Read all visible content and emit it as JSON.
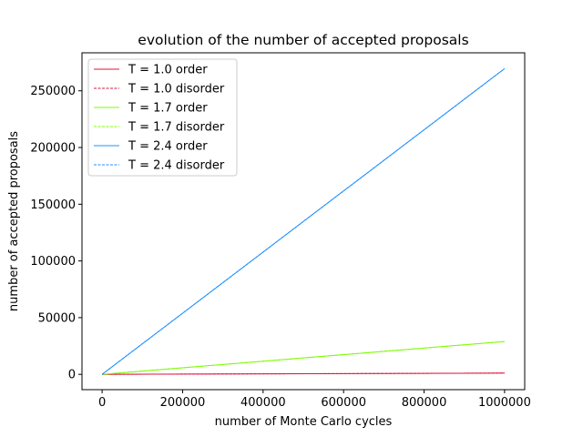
{
  "chart_data": {
    "type": "line",
    "title": "evolution of the number of accepted proposals",
    "xlabel": "number of Monte Carlo cycles",
    "ylabel": "number of accepted proposals",
    "xlim": [
      -50000,
      1050000
    ],
    "ylim": [
      -13500,
      283500
    ],
    "x_ticks": [
      0,
      200000,
      400000,
      600000,
      800000,
      1000000
    ],
    "x_tick_labels": [
      "0",
      "200000",
      "400000",
      "600000",
      "800000",
      "1000000"
    ],
    "y_ticks": [
      0,
      50000,
      100000,
      150000,
      200000,
      250000
    ],
    "y_tick_labels": [
      "0",
      "50000",
      "100000",
      "150000",
      "200000",
      "250000"
    ],
    "grid": false,
    "legend_position": "top-left",
    "series": [
      {
        "name": "T = 1.0 order",
        "color": "#dc143c",
        "dash": "solid",
        "x": [
          0,
          1000000
        ],
        "y": [
          0,
          1100
        ]
      },
      {
        "name": "T = 1.0 disorder",
        "color": "#dc143c",
        "dash": "dashed",
        "x": [
          0,
          1000000
        ],
        "y": [
          0,
          1100
        ]
      },
      {
        "name": "T = 1.7 order",
        "color": "#7cfc00",
        "dash": "solid",
        "x": [
          0,
          1000000
        ],
        "y": [
          0,
          29000
        ]
      },
      {
        "name": "T = 1.7 disorder",
        "color": "#7cfc00",
        "dash": "dashed",
        "x": [
          0,
          1000000
        ],
        "y": [
          0,
          29000
        ]
      },
      {
        "name": "T = 2.4 order",
        "color": "#1e90ff",
        "dash": "solid",
        "x": [
          0,
          1000000
        ],
        "y": [
          0,
          269500
        ]
      },
      {
        "name": "T = 2.4 disorder",
        "color": "#1e90ff",
        "dash": "dashed",
        "x": [
          0,
          1000000
        ],
        "y": [
          0,
          269500
        ]
      }
    ]
  }
}
